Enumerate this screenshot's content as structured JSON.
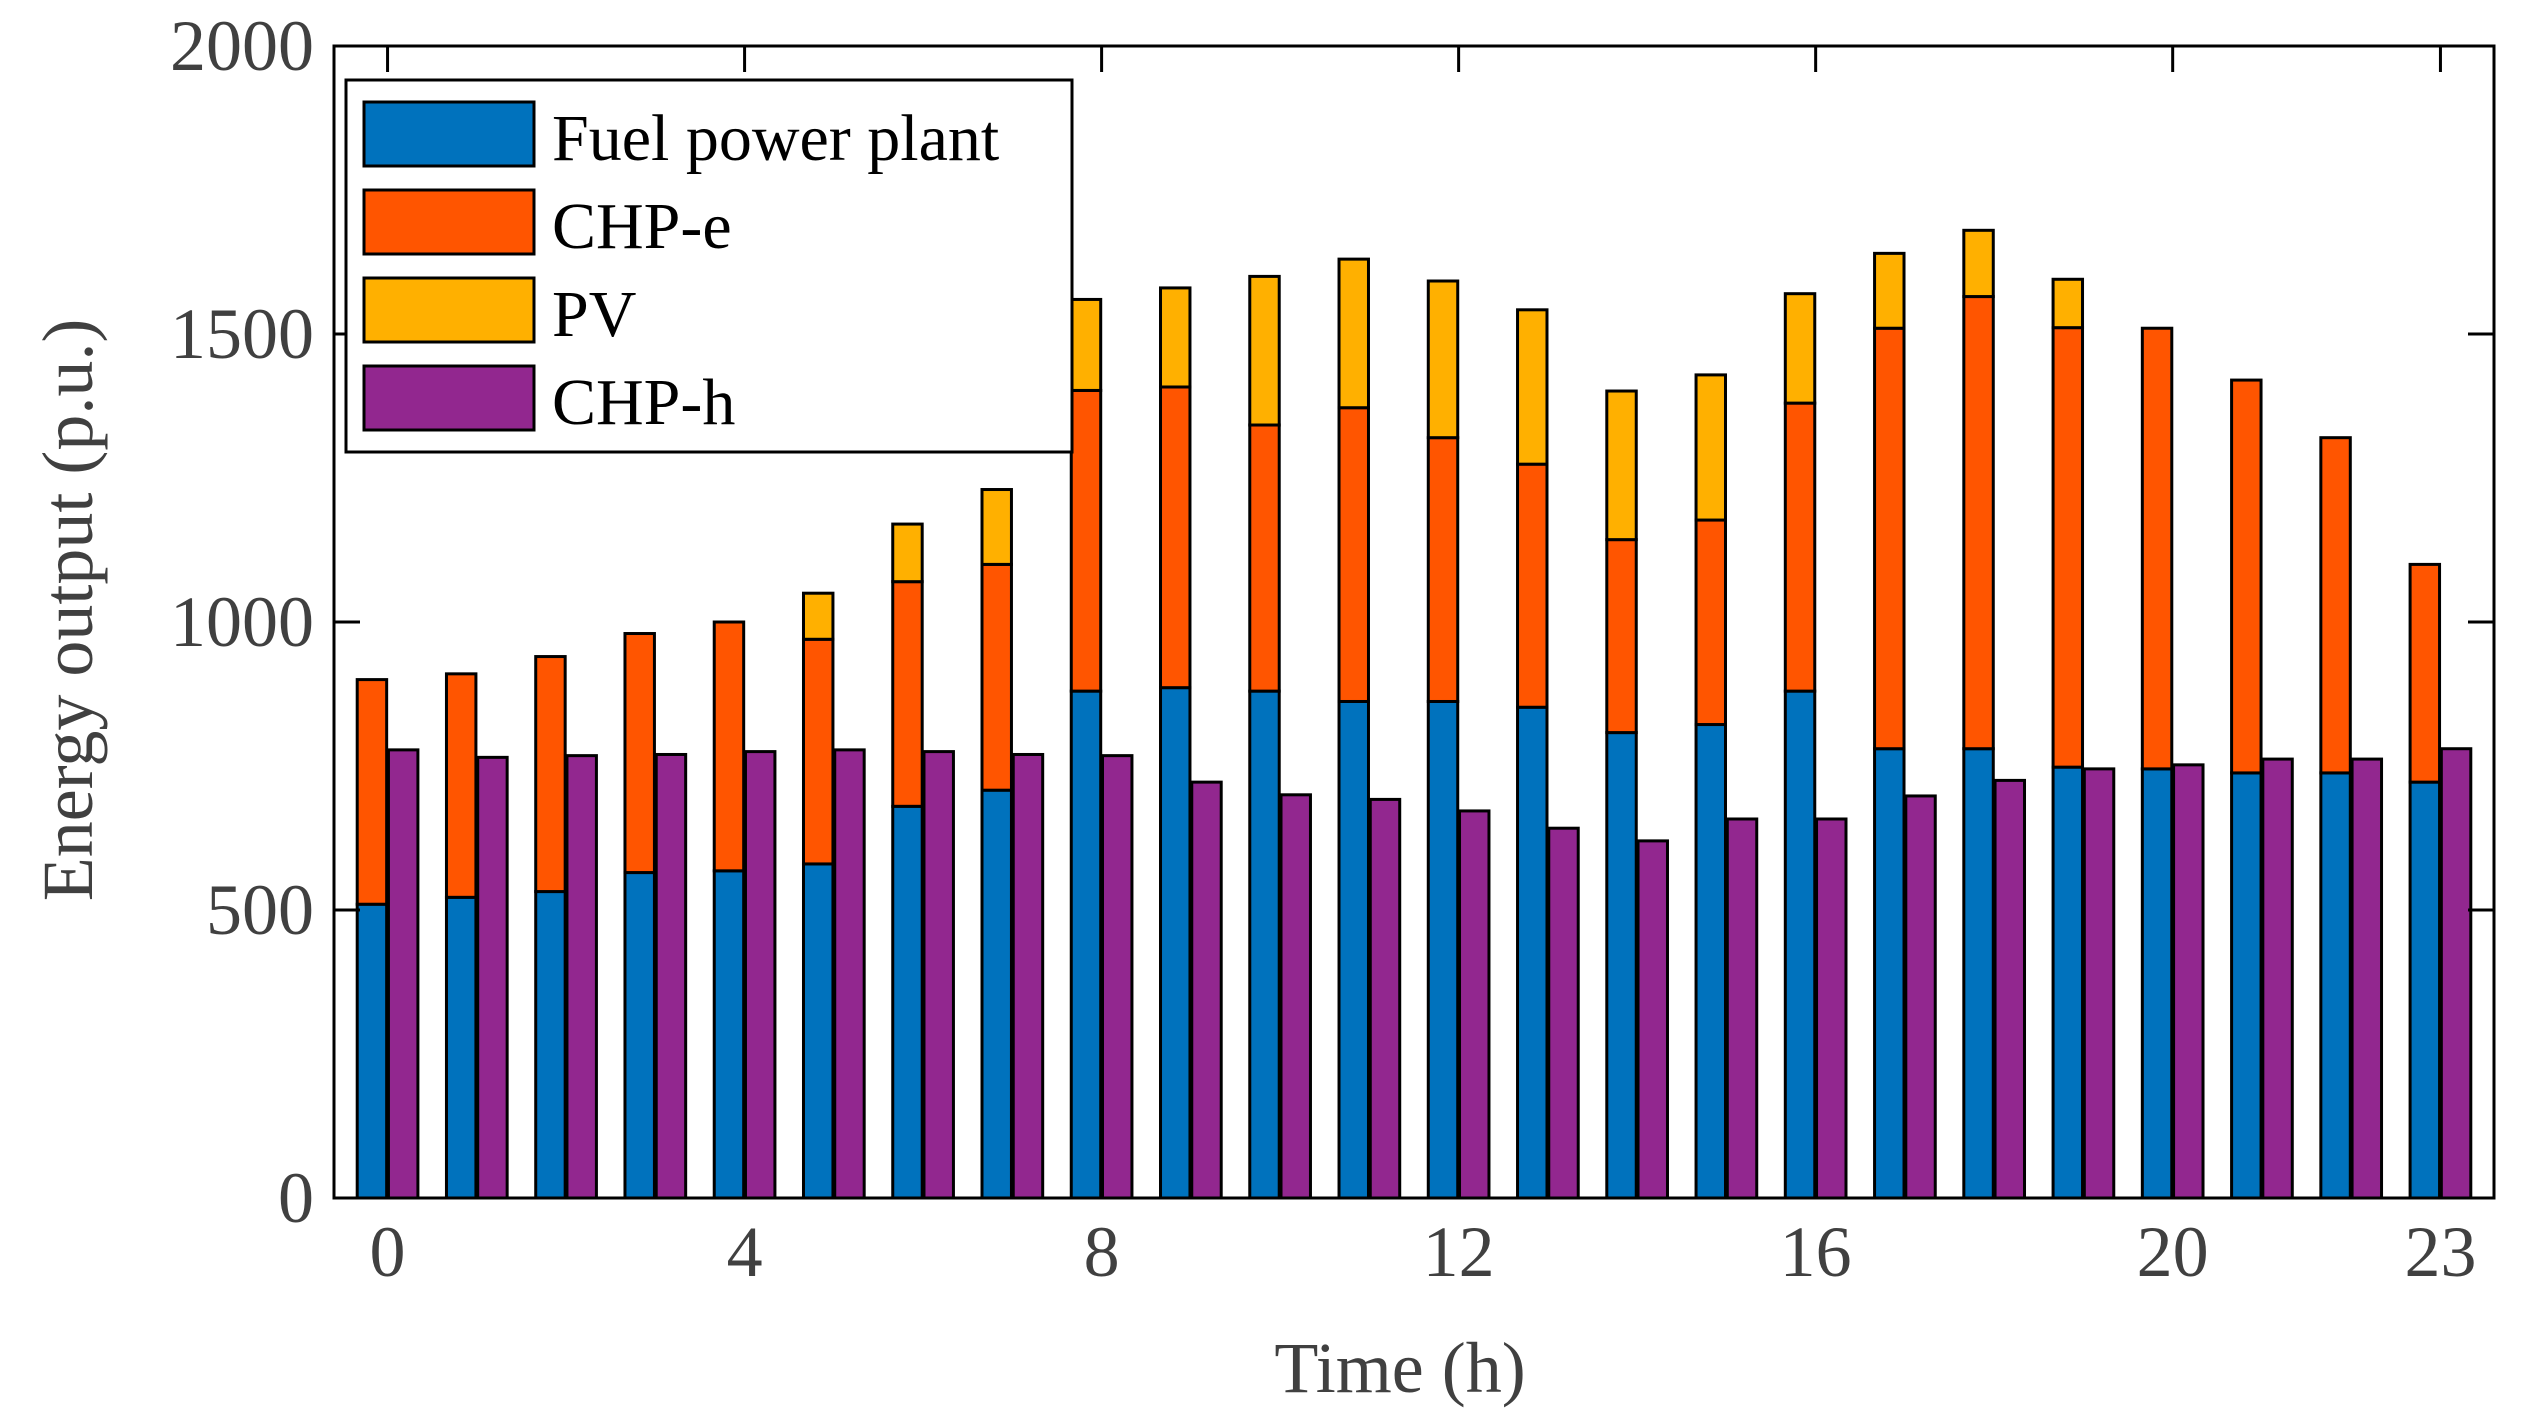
{
  "chart_data": {
    "type": "bar",
    "stacking": "grouped-stacked",
    "title": "",
    "xlabel": "Time (h)",
    "ylabel": "Energy output (p.u.)",
    "ylim": [
      0,
      2000
    ],
    "xlim": [
      -0.6,
      23.6
    ],
    "yticks": [
      0,
      500,
      1000,
      1500,
      2000
    ],
    "xticks": [
      0,
      4,
      8,
      12,
      16,
      20,
      23
    ],
    "hours": [
      0,
      1,
      2,
      3,
      4,
      5,
      6,
      7,
      8,
      9,
      10,
      11,
      12,
      13,
      14,
      15,
      16,
      17,
      18,
      19,
      20,
      21,
      22,
      23
    ],
    "series": [
      {
        "name": "Fuel power plant",
        "color": "#0072BD",
        "stack": "electric",
        "values": [
          510,
          522,
          532,
          565,
          568,
          580,
          680,
          708,
          880,
          886,
          880,
          862,
          862,
          852,
          808,
          822,
          880,
          780,
          780,
          748,
          745,
          738,
          738,
          722
        ]
      },
      {
        "name": "CHP-e",
        "color": "#FF5500",
        "stack": "electric",
        "values": [
          390,
          388,
          408,
          415,
          432,
          390,
          390,
          392,
          522,
          522,
          462,
          510,
          458,
          422,
          335,
          355,
          500,
          730,
          785,
          763,
          765,
          682,
          582,
          378
        ]
      },
      {
        "name": "PV",
        "color": "#FFB000",
        "stack": "electric",
        "values": [
          0,
          0,
          0,
          0,
          0,
          80,
          100,
          130,
          158,
          172,
          258,
          258,
          272,
          268,
          258,
          252,
          190,
          130,
          115,
          84,
          0,
          0,
          0,
          0
        ]
      },
      {
        "name": "CHP-h",
        "color": "#92278F",
        "stack": "heat",
        "values": [
          778,
          765,
          768,
          770,
          775,
          778,
          775,
          770,
          768,
          722,
          700,
          692,
          672,
          642,
          620,
          658,
          658,
          698,
          725,
          745,
          752,
          762,
          762,
          780
        ]
      }
    ],
    "legend": {
      "position": "top-left",
      "entries": [
        "Fuel power plant",
        "CHP-e",
        "PV",
        "CHP-h"
      ]
    },
    "grid": false
  }
}
